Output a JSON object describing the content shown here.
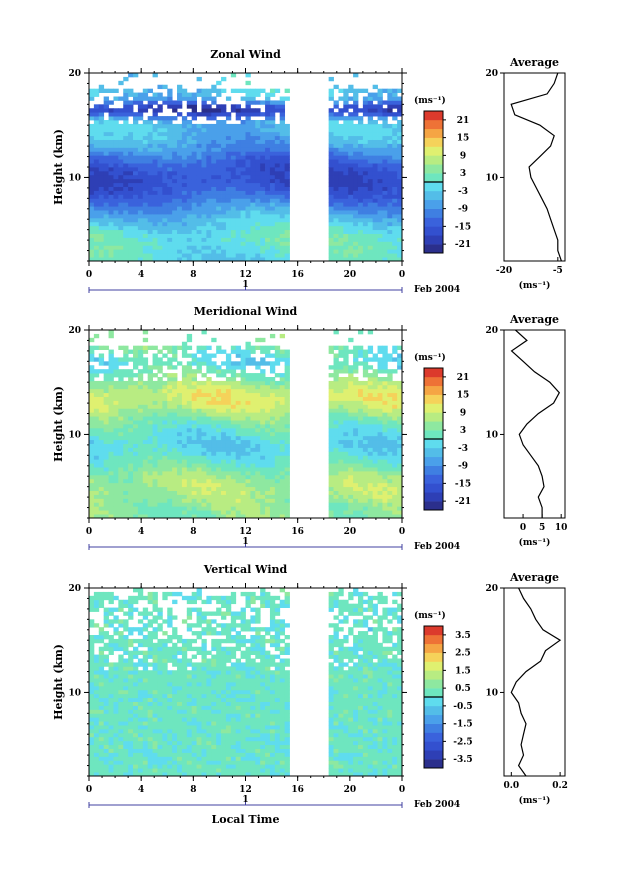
{
  "chart_data": [
    {
      "type": "heatmap",
      "title": "Zonal Wind",
      "ylabel": "Height (km)",
      "x_ticks": [
        "0",
        "4",
        "8",
        "12",
        "16",
        "20",
        "0"
      ],
      "y_ticks": [
        "20",
        "10"
      ],
      "xlim": [
        0,
        24
      ],
      "ylim": [
        2,
        20
      ],
      "date_label": "Feb 2004",
      "day_marker": "1",
      "colorbar": {
        "unit": "(ms⁻¹)",
        "ticks": [
          "21",
          "15",
          "9",
          "3",
          "-3",
          "-9",
          "-15",
          "-21"
        ],
        "range": [
          -24,
          24
        ]
      },
      "gap_hours": [
        15.5,
        18.5
      ],
      "profile": {
        "title": "Average",
        "xlabel": "(ms⁻¹)",
        "x_ticks": [
          "-20",
          "-5"
        ],
        "xlim": [
          -20,
          -3
        ],
        "y_ticks": [
          "20",
          "10"
        ],
        "heights": [
          2,
          3,
          4,
          5,
          6,
          7,
          8,
          9,
          10,
          11,
          12,
          13,
          14,
          15,
          16,
          17,
          18,
          19,
          20
        ],
        "values": [
          -4,
          -5,
          -5,
          -6,
          -7,
          -8,
          -9.5,
          -11,
          -12.5,
          -13,
          -10,
          -7,
          -6,
          -10,
          -17,
          -18,
          -8,
          -6,
          -5
        ]
      }
    },
    {
      "type": "heatmap",
      "title": "Meridional Wind",
      "ylabel": "Height (km)",
      "x_ticks": [
        "0",
        "4",
        "8",
        "12",
        "16",
        "20",
        "0"
      ],
      "y_ticks": [
        "20",
        "10"
      ],
      "xlim": [
        0,
        24
      ],
      "ylim": [
        2,
        20
      ],
      "date_label": "Feb 2004",
      "day_marker": "1",
      "colorbar": {
        "unit": "(ms⁻¹)",
        "ticks": [
          "21",
          "15",
          "9",
          "3",
          "-3",
          "-9",
          "-15",
          "-21"
        ],
        "range": [
          -24,
          24
        ]
      },
      "gap_hours": [
        15.5,
        18.5
      ],
      "profile": {
        "title": "Average",
        "xlabel": "(ms⁻¹)",
        "x_ticks": [
          "0",
          "5",
          "10"
        ],
        "xlim": [
          -5,
          11
        ],
        "y_ticks": [
          "20",
          "10"
        ],
        "heights": [
          2,
          3,
          4,
          5,
          6,
          7,
          8,
          9,
          10,
          11,
          12,
          13,
          14,
          15,
          16,
          17,
          18,
          19,
          20
        ],
        "values": [
          5,
          5,
          4,
          5.5,
          5,
          4,
          2,
          0,
          -1,
          1,
          4,
          8,
          9.5,
          7,
          3,
          0,
          -3,
          1,
          -2
        ]
      }
    },
    {
      "type": "heatmap",
      "title": "Vertical Wind",
      "ylabel": "Height (km)",
      "xlabel": "Local Time",
      "x_ticks": [
        "0",
        "4",
        "8",
        "12",
        "16",
        "20",
        "0"
      ],
      "y_ticks": [
        "20",
        "10"
      ],
      "xlim": [
        0,
        24
      ],
      "ylim": [
        2,
        20
      ],
      "date_label": "Feb 2004",
      "day_marker": "1",
      "colorbar": {
        "unit": "(ms⁻¹)",
        "ticks": [
          "3.5",
          "2.5",
          "1.5",
          "0.5",
          "-0.5",
          "-1.5",
          "-2.5",
          "-3.5"
        ],
        "range": [
          -4,
          4
        ]
      },
      "gap_hours": [
        15.5,
        18.5
      ],
      "profile": {
        "title": "Average",
        "xlabel": "(ms⁻¹)",
        "x_ticks": [
          "0.0",
          "0.2"
        ],
        "xlim": [
          -0.03,
          0.22
        ],
        "y_ticks": [
          "20",
          "10"
        ],
        "heights": [
          2,
          3,
          4,
          5,
          6,
          7,
          8,
          9,
          10,
          11,
          12,
          13,
          14,
          15,
          16,
          17,
          18,
          19,
          20
        ],
        "values": [
          0.06,
          0.03,
          0.05,
          0.04,
          0.05,
          0.06,
          0.04,
          0.03,
          0.0,
          0.02,
          0.06,
          0.12,
          0.14,
          0.2,
          0.13,
          0.1,
          0.08,
          0.05,
          0.03
        ]
      }
    }
  ]
}
